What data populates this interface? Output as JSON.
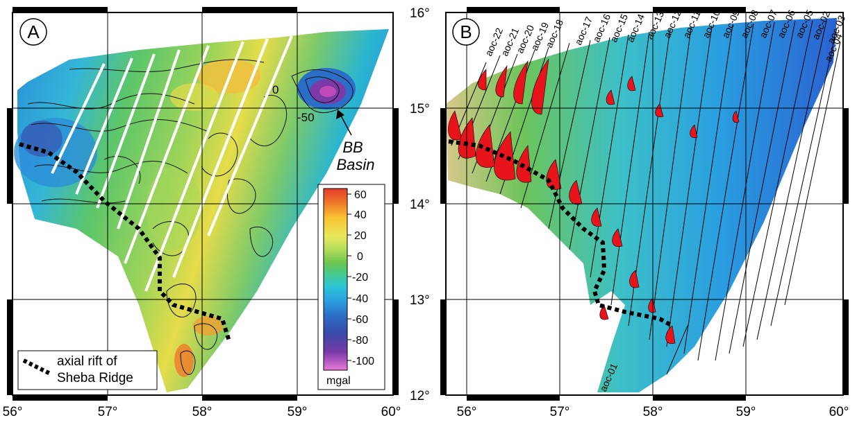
{
  "map_a": {
    "panel_label": "A",
    "x_ticks": [
      "56°",
      "57°",
      "58°",
      "59°",
      "60°"
    ],
    "contour_labels": [
      "0",
      "-50"
    ],
    "feature_label_line1": "BB",
    "feature_label_line2": "Basin",
    "colorbar": {
      "ticks": [
        "60",
        "40",
        "20",
        "0",
        "-20",
        "-40",
        "-60",
        "-80",
        "-100"
      ],
      "unit": "mgal",
      "colors": [
        "#e23a2a",
        "#f07a2a",
        "#f8c232",
        "#e8e85a",
        "#b8de5e",
        "#6cc64e",
        "#48c88e",
        "#2cc6d6",
        "#2a9ee0",
        "#2a6ec8",
        "#3a4aa8",
        "#7a3aa8",
        "#c04ab8",
        "#e87ad8"
      ]
    },
    "legend": {
      "line1": "axial rift of",
      "line2": "Sheba Ridge"
    }
  },
  "map_b": {
    "panel_label": "B",
    "x_ticks": [
      "56°",
      "57°",
      "58°",
      "59°",
      "60°"
    ],
    "y_ticks": [
      "16°",
      "15°",
      "14°",
      "13°",
      "12°"
    ],
    "profile_labels": [
      "aoc-22",
      "aoc-21",
      "aoc-20",
      "aoc-19",
      "aoc-18",
      "aoc-17",
      "aoc-16",
      "aoc-15",
      "aoc-14",
      "aoc-13",
      "aoc-12",
      "aoc-11",
      "aoc-10",
      "aoc-09",
      "aoc-08",
      "aoc-07",
      "aoc-06",
      "aoc-05",
      "aoc-02",
      "aoc-03",
      "aoc-04"
    ],
    "bottom_profile_label": "aoc-01"
  },
  "colors": {
    "rift": "#000000",
    "anomaly_fill": "#e8141c",
    "frame": "#000000"
  }
}
